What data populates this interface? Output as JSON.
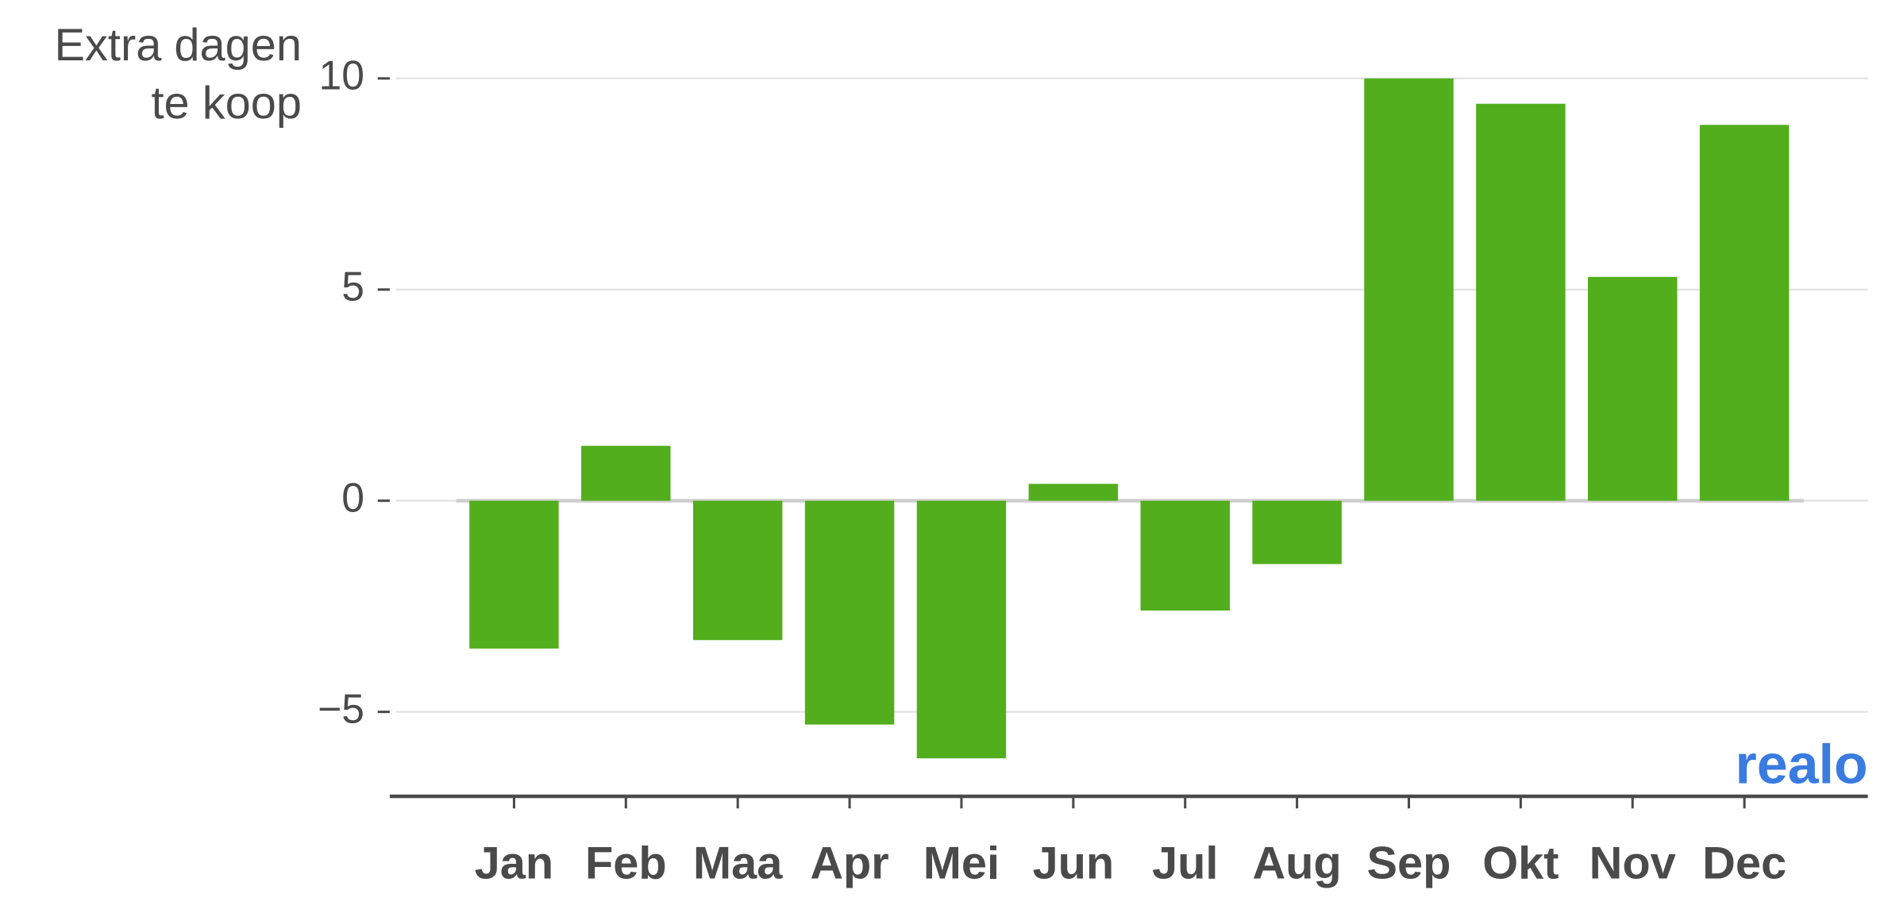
{
  "chart_data": {
    "type": "bar",
    "title": "Extra dagen te koop",
    "categories": [
      "Jan",
      "Feb",
      "Maa",
      "Apr",
      "Mei",
      "Jun",
      "Jul",
      "Aug",
      "Sep",
      "Okt",
      "Nov",
      "Dec"
    ],
    "values": [
      -3.5,
      1.3,
      -3.3,
      -5.3,
      -6.1,
      0.4,
      -2.6,
      -1.5,
      10,
      9.4,
      5.3,
      8.9
    ],
    "color": "#52ae1c",
    "ylim": [
      -7,
      10.5
    ],
    "yticks": [
      {
        "value": -5,
        "label": "−5"
      },
      0,
      5,
      10
    ],
    "grid": true,
    "logo": "realo"
  }
}
